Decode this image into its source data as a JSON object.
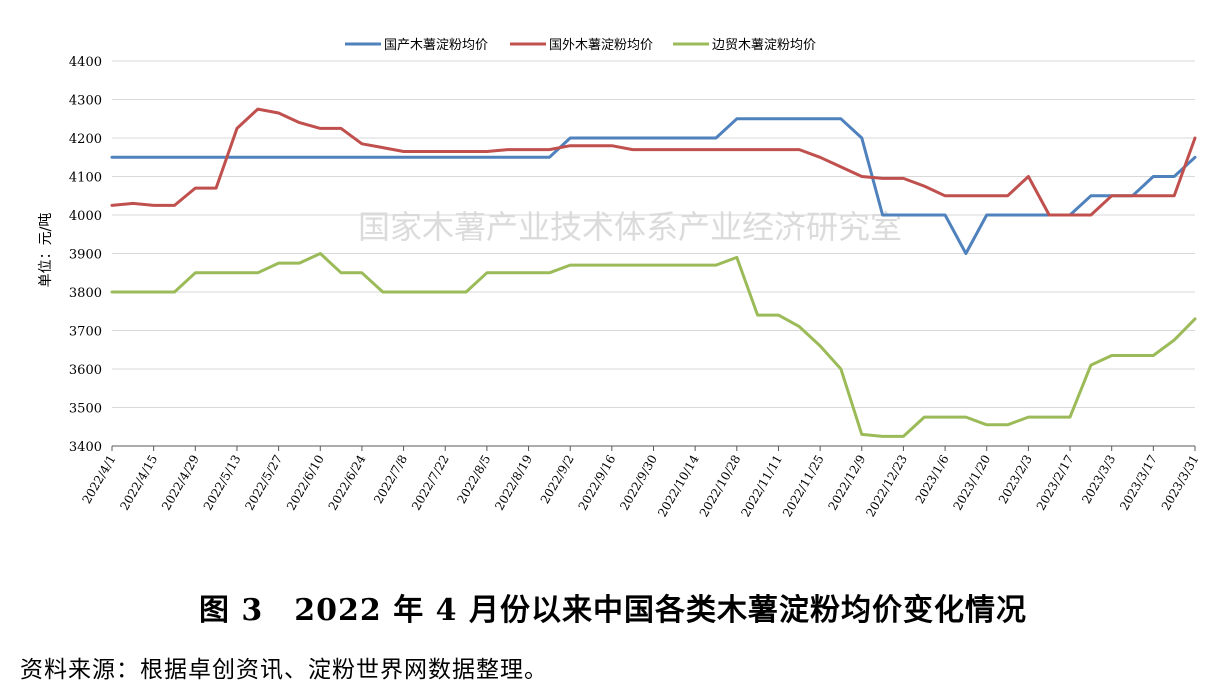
{
  "caption": "图 3　2022 年 4 月份以来中国各类木薯淀粉均价变化情况",
  "source": "资料来源：根据卓创资讯、淀粉世界网数据整理。",
  "watermark": "国家木薯产业技术体系产业经济研究室",
  "chart_data": {
    "type": "line",
    "title": "",
    "ylabel": "单位：元/吨",
    "xlabel": "",
    "ylim": [
      3400,
      4400
    ],
    "yticks": [
      3400,
      3500,
      3600,
      3700,
      3800,
      3900,
      4000,
      4100,
      4200,
      4300,
      4400
    ],
    "grid": true,
    "legend_position": "top-center",
    "x": [
      "2022/4/1",
      "2022/4/8",
      "2022/4/15",
      "2022/4/22",
      "2022/4/29",
      "2022/5/6",
      "2022/5/13",
      "2022/5/20",
      "2022/5/27",
      "2022/6/3",
      "2022/6/10",
      "2022/6/17",
      "2022/6/24",
      "2022/7/1",
      "2022/7/8",
      "2022/7/15",
      "2022/7/22",
      "2022/7/29",
      "2022/8/5",
      "2022/8/12",
      "2022/8/19",
      "2022/8/26",
      "2022/9/2",
      "2022/9/9",
      "2022/9/16",
      "2022/9/23",
      "2022/9/30",
      "2022/10/7",
      "2022/10/14",
      "2022/10/21",
      "2022/10/28",
      "2022/11/4",
      "2022/11/11",
      "2022/11/18",
      "2022/11/25",
      "2022/12/2",
      "2022/12/9",
      "2022/12/16",
      "2022/12/23",
      "2022/12/30",
      "2023/1/6",
      "2023/1/13",
      "2023/1/20",
      "2023/1/27",
      "2023/2/3",
      "2023/2/10",
      "2023/2/17",
      "2023/2/24",
      "2023/3/3",
      "2023/3/10",
      "2023/3/17",
      "2023/3/24",
      "2023/3/31"
    ],
    "x_tick_labels": [
      "2022/4/1",
      "2022/4/15",
      "2022/4/29",
      "2022/5/13",
      "2022/5/27",
      "2022/6/10",
      "2022/6/24",
      "2022/7/8",
      "2022/7/22",
      "2022/8/5",
      "2022/8/19",
      "2022/9/2",
      "2022/9/16",
      "2022/9/30",
      "2022/10/14",
      "2022/10/28",
      "2022/11/11",
      "2022/11/25",
      "2022/12/9",
      "2022/12/23",
      "2023/1/6",
      "2023/1/20",
      "2023/2/3",
      "2023/2/17",
      "2023/3/3",
      "2023/3/17",
      "2023/3/31"
    ],
    "series": [
      {
        "name": "国产木薯淀粉均价",
        "color": "#4F81BD",
        "values": [
          4150,
          4150,
          4150,
          4150,
          4150,
          4150,
          4150,
          4150,
          4150,
          4150,
          4150,
          4150,
          4150,
          4150,
          4150,
          4150,
          4150,
          4150,
          4150,
          4150,
          4150,
          4150,
          4200,
          4200,
          4200,
          4200,
          4200,
          4200,
          4200,
          4200,
          4250,
          4250,
          4250,
          4250,
          4250,
          4250,
          4200,
          4000,
          4000,
          4000,
          4000,
          3900,
          4000,
          4000,
          4000,
          4000,
          4000,
          4050,
          4050,
          4050,
          4100,
          4100,
          4150
        ]
      },
      {
        "name": "国外木薯淀粉均价",
        "color": "#C0504D",
        "values": [
          4025,
          4030,
          4025,
          4025,
          4070,
          4070,
          4225,
          4275,
          4265,
          4240,
          4225,
          4225,
          4185,
          4175,
          4165,
          4165,
          4165,
          4165,
          4165,
          4170,
          4170,
          4170,
          4180,
          4180,
          4180,
          4170,
          4170,
          4170,
          4170,
          4170,
          4170,
          4170,
          4170,
          4170,
          4150,
          4125,
          4100,
          4095,
          4095,
          4075,
          4050,
          4050,
          4050,
          4050,
          4100,
          4000,
          4000,
          4000,
          4050,
          4050,
          4050,
          4050,
          4200
        ]
      },
      {
        "name": "边贸木薯淀粉均价",
        "color": "#9BBB59",
        "values": [
          3800,
          3800,
          3800,
          3800,
          3850,
          3850,
          3850,
          3850,
          3875,
          3875,
          3900,
          3850,
          3850,
          3800,
          3800,
          3800,
          3800,
          3800,
          3850,
          3850,
          3850,
          3850,
          3870,
          3870,
          3870,
          3870,
          3870,
          3870,
          3870,
          3870,
          3890,
          3740,
          3740,
          3710,
          3660,
          3600,
          3430,
          3425,
          3425,
          3475,
          3475,
          3475,
          3455,
          3455,
          3475,
          3475,
          3475,
          3610,
          3635,
          3635,
          3635,
          3675,
          3730
        ]
      }
    ]
  }
}
